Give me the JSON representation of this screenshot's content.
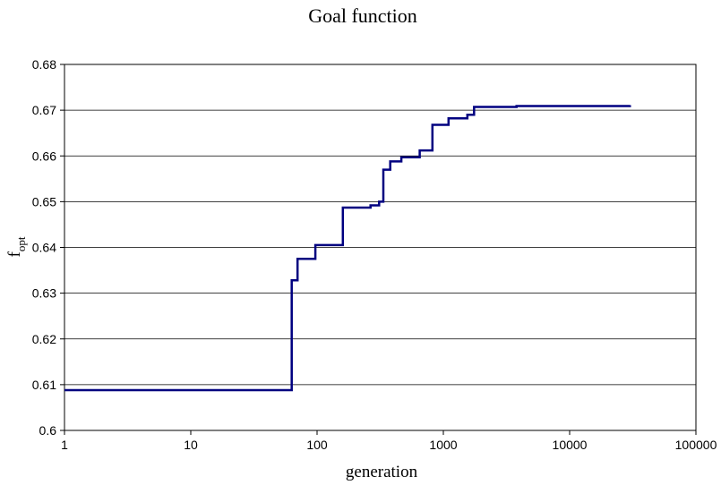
{
  "chart_data": {
    "type": "line",
    "title": "Goal function",
    "xlabel": "generation",
    "ylabel": "f",
    "ylabel_subscript": "opt",
    "xscale": "log",
    "xlim": [
      1,
      100000
    ],
    "ylim": [
      0.6,
      0.68
    ],
    "xticks": [
      1,
      10,
      100,
      1000,
      10000,
      100000
    ],
    "xtick_labels": [
      "1",
      "10",
      "100",
      "1000",
      "10000",
      "100000"
    ],
    "yticks": [
      0.6,
      0.61,
      0.62,
      0.63,
      0.64,
      0.65,
      0.66,
      0.67,
      0.68
    ],
    "ytick_labels": [
      "0.6",
      "0.61",
      "0.62",
      "0.63",
      "0.64",
      "0.65",
      "0.66",
      "0.67",
      "0.68"
    ],
    "grid": "horizontal",
    "legend": "none",
    "line_color": "#000080",
    "series": [
      {
        "step": "post",
        "x": [
          1,
          62,
          63,
          68,
          70,
          95,
          97,
          155,
          160,
          255,
          265,
          295,
          310,
          330,
          335,
          375,
          380,
          450,
          465,
          620,
          650,
          800,
          820,
          1050,
          1100,
          1500,
          1550,
          1700,
          1750,
          3700,
          3800,
          30000
        ],
        "y": [
          0.6088,
          0.6088,
          0.6328,
          0.6328,
          0.6375,
          0.6375,
          0.6405,
          0.6405,
          0.6487,
          0.6487,
          0.6492,
          0.6492,
          0.65,
          0.65,
          0.657,
          0.657,
          0.6588,
          0.6588,
          0.6597,
          0.6597,
          0.6612,
          0.6612,
          0.6668,
          0.6668,
          0.6682,
          0.6682,
          0.669,
          0.669,
          0.6707,
          0.6707,
          0.6709,
          0.6711
        ]
      }
    ]
  }
}
